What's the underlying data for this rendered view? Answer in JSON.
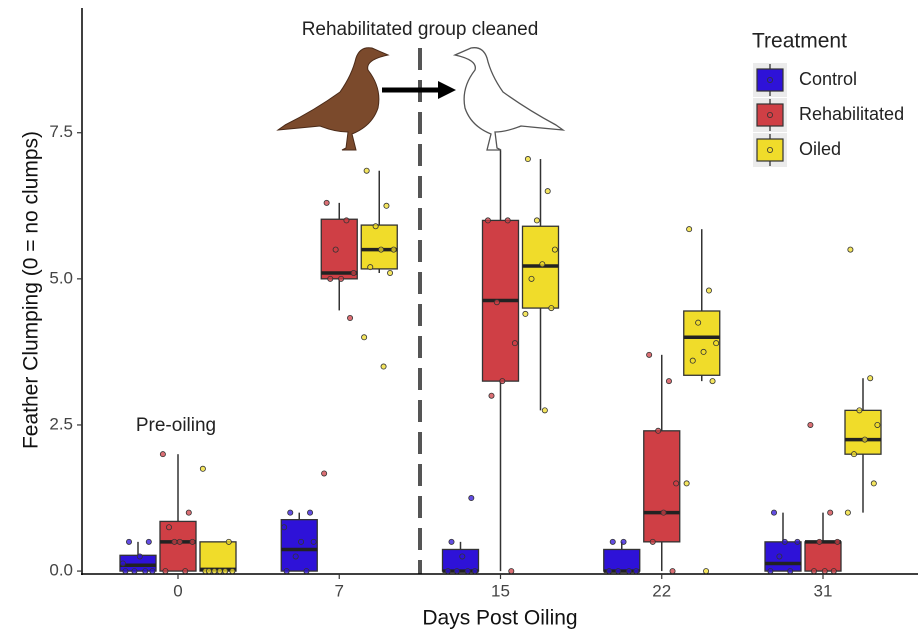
{
  "chart_data": {
    "type": "box",
    "x_label": "Days Post Oiling",
    "y_label": "Feather Clumping (0 = no clumps)",
    "annotations": [
      "Rehabilitated group cleaned",
      "Pre-oiling"
    ],
    "legend_title": "Treatment",
    "legend_position": "top-right",
    "categories": [
      "0",
      "7",
      "15",
      "22",
      "31"
    ],
    "ylim": [
      -0.05,
      9.6
    ],
    "yticks": [
      {
        "value": 0,
        "label": "0.0"
      },
      2.5,
      {
        "value": 5,
        "label": "5.0"
      },
      7.5
    ],
    "grid": false,
    "series": [
      {
        "name": "Control",
        "color": "#2e12d8",
        "boxes": [
          {
            "min": 0,
            "q1": 0,
            "median": 0.1,
            "q3": 0.27,
            "max": 0.5,
            "points": [
              0,
              0,
              0,
              0,
              0.25,
              0.5,
              0.5,
              0.13
            ]
          },
          {
            "min": 0,
            "q1": 0,
            "median": 0.37,
            "q3": 0.88,
            "max": 1.0,
            "points": [
              0,
              0,
              0.25,
              0.5,
              0.5,
              1.0,
              1.0,
              0.75
            ]
          },
          {
            "min": 0,
            "q1": 0,
            "median": 0,
            "q3": 0.37,
            "max": 0.5,
            "points": [
              0,
              0,
              0,
              0,
              0.25,
              0.5,
              1.25
            ]
          },
          {
            "min": 0,
            "q1": 0,
            "median": 0,
            "q3": 0.37,
            "max": 0.5,
            "points": [
              0,
              0,
              0,
              0,
              0.5,
              0.5
            ]
          },
          {
            "min": 0,
            "q1": 0,
            "median": 0.13,
            "q3": 0.5,
            "max": 1.0,
            "points": [
              0,
              0,
              0.25,
              0.5,
              0.5,
              1.0
            ]
          }
        ]
      },
      {
        "name": "Rehabilitated",
        "color": "#cf3f45",
        "boxes": [
          {
            "min": 0,
            "q1": 0,
            "median": 0.5,
            "q3": 0.85,
            "max": 2.0,
            "points": [
              0,
              0,
              0.5,
              0.5,
              0.5,
              0.75,
              1.0,
              2.0
            ]
          },
          {
            "min": 4.46,
            "q1": 5.0,
            "median": 5.1,
            "q3": 6.02,
            "max": 6.3,
            "points": [
              6.3,
              6.0,
              5.5,
              5.1,
              5.0,
              5.0,
              4.33,
              1.67
            ]
          },
          {
            "min": 0,
            "q1": 3.25,
            "median": 4.63,
            "q3": 6.0,
            "max": 7.2,
            "points": [
              6.0,
              6.0,
              4.6,
              3.9,
              3.25,
              3.0,
              0
            ]
          },
          {
            "min": 0,
            "q1": 0.5,
            "median": 1.0,
            "q3": 2.4,
            "max": 3.7,
            "points": [
              3.7,
              3.25,
              2.4,
              1.5,
              1.0,
              0.5,
              0
            ]
          },
          {
            "min": 0,
            "q1": 0,
            "median": 0.5,
            "q3": 0.5,
            "max": 1.0,
            "points": [
              2.5,
              1.0,
              0.5,
              0.5,
              0,
              0,
              0
            ]
          }
        ]
      },
      {
        "name": "Oiled",
        "color": "#f0dc2a",
        "boxes": [
          {
            "min": 0,
            "q1": 0,
            "median": 0.03,
            "q3": 0.5,
            "max": 0.5,
            "points": [
              0,
              0,
              0,
              0,
              0,
              0,
              0.5,
              1.75
            ]
          },
          {
            "min": 5.1,
            "q1": 5.17,
            "median": 5.5,
            "q3": 5.92,
            "max": 6.85,
            "points": [
              6.85,
              6.25,
              5.9,
              5.5,
              5.5,
              5.2,
              5.1,
              4.0,
              3.5
            ]
          },
          {
            "min": 2.75,
            "q1": 4.5,
            "median": 5.22,
            "q3": 5.9,
            "max": 7.05,
            "points": [
              7.05,
              6.5,
              6.0,
              5.5,
              5.25,
              5.0,
              4.5,
              4.4,
              2.75
            ]
          },
          {
            "min": 3.25,
            "q1": 3.35,
            "median": 4.0,
            "q3": 4.45,
            "max": 5.85,
            "points": [
              5.85,
              4.8,
              4.25,
              3.9,
              3.75,
              3.6,
              3.25,
              1.5,
              0
            ]
          },
          {
            "min": 1.0,
            "q1": 2.0,
            "median": 2.25,
            "q3": 2.75,
            "max": 3.3,
            "points": [
              5.5,
              3.3,
              2.75,
              2.5,
              2.25,
              2.0,
              1.5,
              1.0
            ]
          }
        ]
      }
    ]
  }
}
